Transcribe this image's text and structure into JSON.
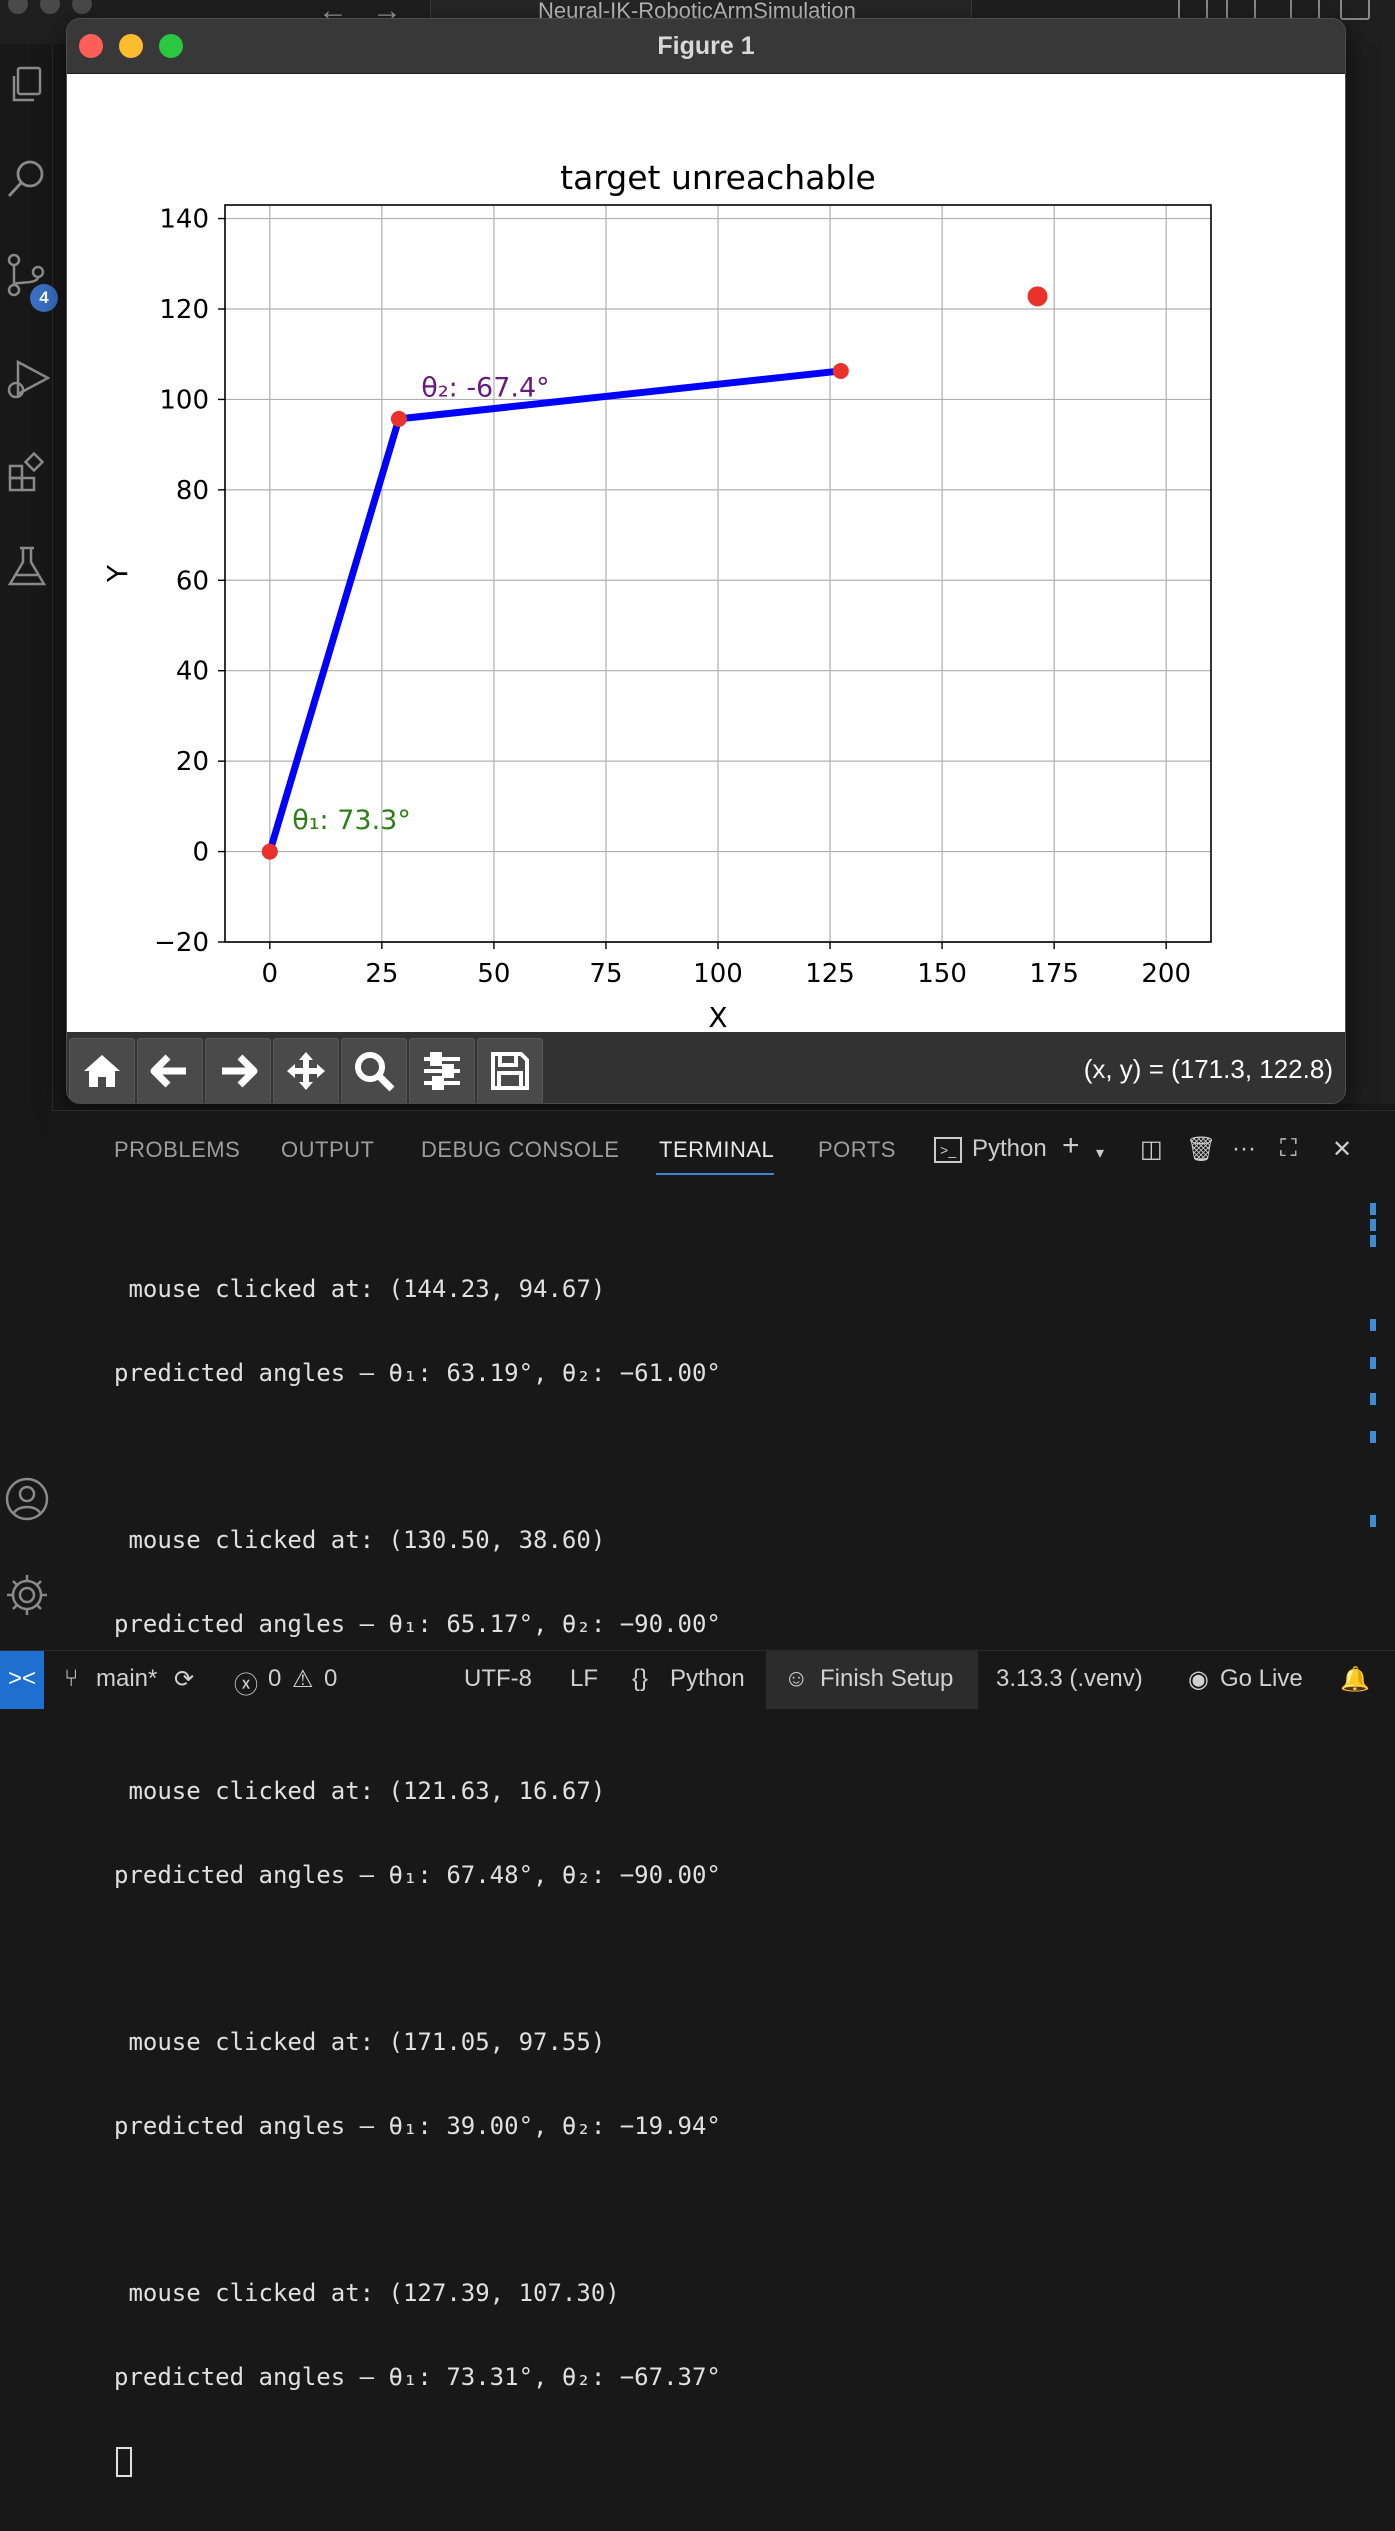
{
  "topbar": {
    "back_arrow": "←",
    "forward_arrow": "→",
    "search_text": "Neural-IK-RoboticArmSimulation"
  },
  "activity_bar": {
    "items": [
      {
        "name": "explorer-icon"
      },
      {
        "name": "search-icon"
      },
      {
        "name": "source-control-icon",
        "badge": "4"
      },
      {
        "name": "run-debug-icon"
      },
      {
        "name": "extensions-icon"
      },
      {
        "name": "testing-icon"
      },
      {
        "name": "account-icon"
      },
      {
        "name": "settings-gear-icon"
      }
    ]
  },
  "figure_window": {
    "title": "Figure 1",
    "traffic_lights": {
      "close": "#ff5f57",
      "minimize": "#febc2e",
      "zoom": "#28c840"
    },
    "toolbar": {
      "buttons": [
        "home-icon",
        "back-icon",
        "forward-icon",
        "pan-icon",
        "zoom-icon",
        "configure-subplots-icon",
        "save-icon"
      ],
      "coord_readout": "(x, y) = (171.3, 122.8)"
    }
  },
  "chart_data": {
    "type": "line",
    "title": "target unreachable",
    "xlabel": "X",
    "ylabel": "Y",
    "xlim": [
      -10,
      210
    ],
    "ylim": [
      -20,
      143
    ],
    "xticks": [
      0,
      25,
      50,
      75,
      100,
      125,
      150,
      175,
      200
    ],
    "yticks": [
      -20,
      0,
      20,
      40,
      60,
      80,
      100,
      120,
      140
    ],
    "xtick_labels": [
      "0",
      "25",
      "50",
      "75",
      "100",
      "125",
      "150",
      "175",
      "200"
    ],
    "ytick_labels": [
      "−20",
      "0",
      "20",
      "40",
      "60",
      "80",
      "100",
      "120",
      "140"
    ],
    "grid": true,
    "arm": {
      "color": "#0000ff",
      "points": [
        {
          "x": 0,
          "y": 0
        },
        {
          "x": 28.8,
          "y": 95.7
        },
        {
          "x": 127.4,
          "y": 106.3
        }
      ]
    },
    "joints": {
      "color": "#e8322b",
      "points": [
        {
          "x": 0,
          "y": 0
        },
        {
          "x": 28.8,
          "y": 95.7
        },
        {
          "x": 127.4,
          "y": 106.3
        }
      ]
    },
    "target": {
      "x": 171.3,
      "y": 122.8,
      "color": "#e8322b"
    },
    "annotations": [
      {
        "text": "θ₁: 73.3°",
        "x": 5,
        "y": 5,
        "color": "#2e7d1a"
      },
      {
        "text": "θ₂: -67.4°",
        "x": 33.8,
        "y": 100.7,
        "color": "#6a1a7a"
      }
    ]
  },
  "panel": {
    "tabs": [
      {
        "label": "PROBLEMS"
      },
      {
        "label": "OUTPUT"
      },
      {
        "label": "DEBUG CONSOLE"
      },
      {
        "label": "TERMINAL",
        "active": true
      },
      {
        "label": "PORTS"
      }
    ],
    "shell_label": "Python",
    "terminal_lines": [
      " mouse clicked at: (144.23, 94.67)",
      "predicted angles — θ₁: 63.19°, θ₂: −61.00°",
      " mouse clicked at: (130.50, 38.60)",
      "predicted angles — θ₁: 65.17°, θ₂: −90.00°",
      " mouse clicked at: (121.63, 16.67)",
      "predicted angles — θ₁: 67.48°, θ₂: −90.00°",
      " mouse clicked at: (171.05, 97.55)",
      "predicted angles — θ₁: 39.00°, θ₂: −19.94°",
      " mouse clicked at: (127.39, 107.30)",
      "predicted angles — θ₁: 73.31°, θ₂: −67.37°"
    ]
  },
  "statusbar": {
    "branch": "main*",
    "errors": "0",
    "warnings": "0",
    "encoding": "UTF-8",
    "eol": "LF",
    "language_braces": "{}",
    "language": "Python",
    "finish_setup": "Finish Setup",
    "interpreter": "3.13.3 (.venv)",
    "go_live": "Go Live"
  }
}
